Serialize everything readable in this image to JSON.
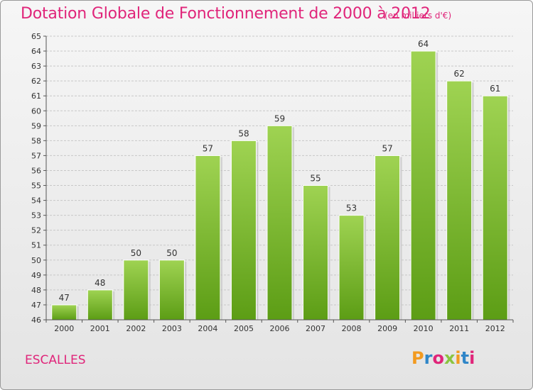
{
  "header": {
    "title": "Dotation Globale de Fonctionnement de 2000 à 2012",
    "unit_note": "(en milliers d'€)"
  },
  "footer": {
    "commune": "ESCALLES",
    "logo_text": "Proxiti"
  },
  "colors": {
    "title": "#e0257a",
    "bar_top": "#9fd352",
    "bar_bottom": "#5c9d15",
    "grid": "#c8c8c8",
    "axis": "#555555"
  },
  "chart_data": {
    "type": "bar",
    "categories": [
      "2000",
      "2001",
      "2002",
      "2003",
      "2004",
      "2005",
      "2006",
      "2007",
      "2008",
      "2009",
      "2010",
      "2011",
      "2012"
    ],
    "values": [
      47,
      48,
      50,
      50,
      57,
      58,
      59,
      55,
      53,
      57,
      64,
      62,
      61
    ],
    "data_labels": [
      "47",
      "48",
      "50",
      "50",
      "57",
      "58",
      "59",
      "55",
      "53",
      "57",
      "64",
      "62",
      "61"
    ],
    "ylim": [
      46,
      65
    ],
    "yticks": [
      "46",
      "47",
      "48",
      "49",
      "50",
      "51",
      "52",
      "53",
      "54",
      "55",
      "56",
      "57",
      "58",
      "59",
      "60",
      "61",
      "62",
      "63",
      "64",
      "65"
    ],
    "grid": true,
    "legend": "none"
  }
}
